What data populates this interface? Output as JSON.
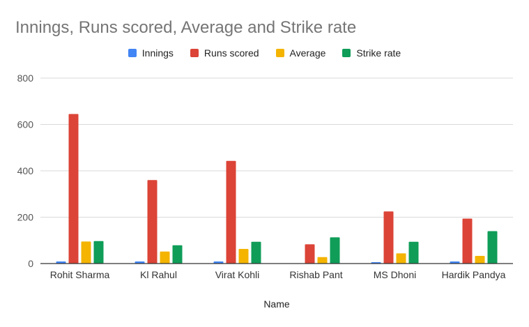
{
  "chart_data": {
    "type": "bar",
    "title": "Innings, Runs scored, Average and Strike rate",
    "xlabel": "Name",
    "ylabel": "",
    "ylim": [
      0,
      800
    ],
    "yticks": [
      "0",
      "200",
      "400",
      "600",
      "800"
    ],
    "grid": true,
    "legend_position": "top",
    "categories": [
      "Rohit Sharma",
      "Kl Rahul",
      "Virat Kohli",
      "Rishab Pant",
      "MS Dhoni",
      "Hardik Pandya"
    ],
    "series": [
      {
        "name": "Innings",
        "color": "#4285f4",
        "values": [
          9,
          9,
          9,
          1,
          6,
          9
        ]
      },
      {
        "name": "Runs scored",
        "color": "#db4437",
        "values": [
          645,
          360,
          443,
          83,
          225,
          194
        ]
      },
      {
        "name": "Average",
        "color": "#f4b400",
        "values": [
          95,
          52,
          63,
          28,
          44,
          33
        ]
      },
      {
        "name": "Strike rate",
        "color": "#0f9d58",
        "values": [
          97,
          79,
          94,
          113,
          94,
          140
        ]
      }
    ]
  }
}
